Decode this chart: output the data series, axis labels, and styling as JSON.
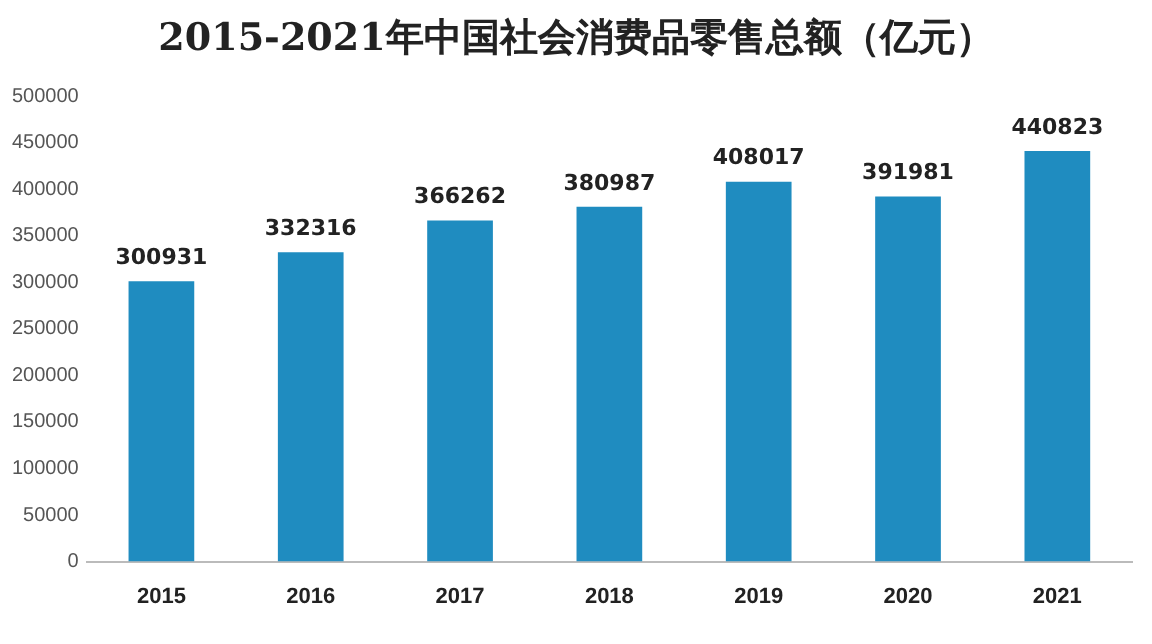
{
  "chart_data": {
    "type": "bar",
    "title": "2015-2021年中国社会消费品零售总额（亿元）",
    "categories": [
      "2015",
      "2016",
      "2017",
      "2018",
      "2019",
      "2020",
      "2021"
    ],
    "values": [
      300931,
      332316,
      366262,
      380987,
      408017,
      391981,
      440823
    ],
    "color": "#1f8cc0",
    "ylim": [
      0,
      500000
    ],
    "yticks": [
      0,
      50000,
      100000,
      150000,
      200000,
      250000,
      300000,
      350000,
      400000,
      450000,
      500000
    ],
    "grid": false,
    "data_labels": true
  }
}
